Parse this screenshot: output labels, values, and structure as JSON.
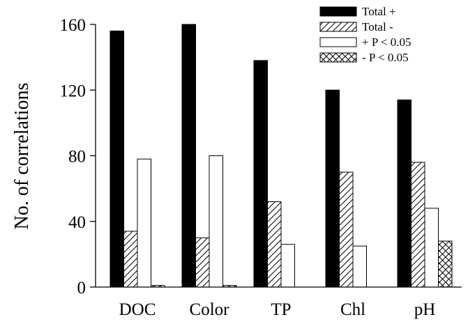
{
  "chart_data": {
    "type": "bar",
    "title": "",
    "xlabel": "",
    "ylabel": "No. of correlations",
    "ylim": [
      0,
      160
    ],
    "yticks": [
      0,
      40,
      80,
      120,
      160
    ],
    "categories": [
      "DOC",
      "Color",
      "TP",
      "Chl",
      "pH"
    ],
    "grid": false,
    "legend_position": "top-right",
    "series": [
      {
        "name": "Total +",
        "pattern": "solid-black",
        "values": [
          156,
          160,
          138,
          120,
          114
        ]
      },
      {
        "name": "Total -",
        "pattern": "diagonal-hatch",
        "values": [
          34,
          30,
          52,
          70,
          76
        ]
      },
      {
        "name": "+ P < 0.05",
        "pattern": "white",
        "values": [
          78,
          80,
          26,
          25,
          48
        ]
      },
      {
        "name": "- P < 0.05",
        "pattern": "cross-hatch",
        "values": [
          1,
          1,
          0,
          0,
          28
        ]
      }
    ]
  }
}
